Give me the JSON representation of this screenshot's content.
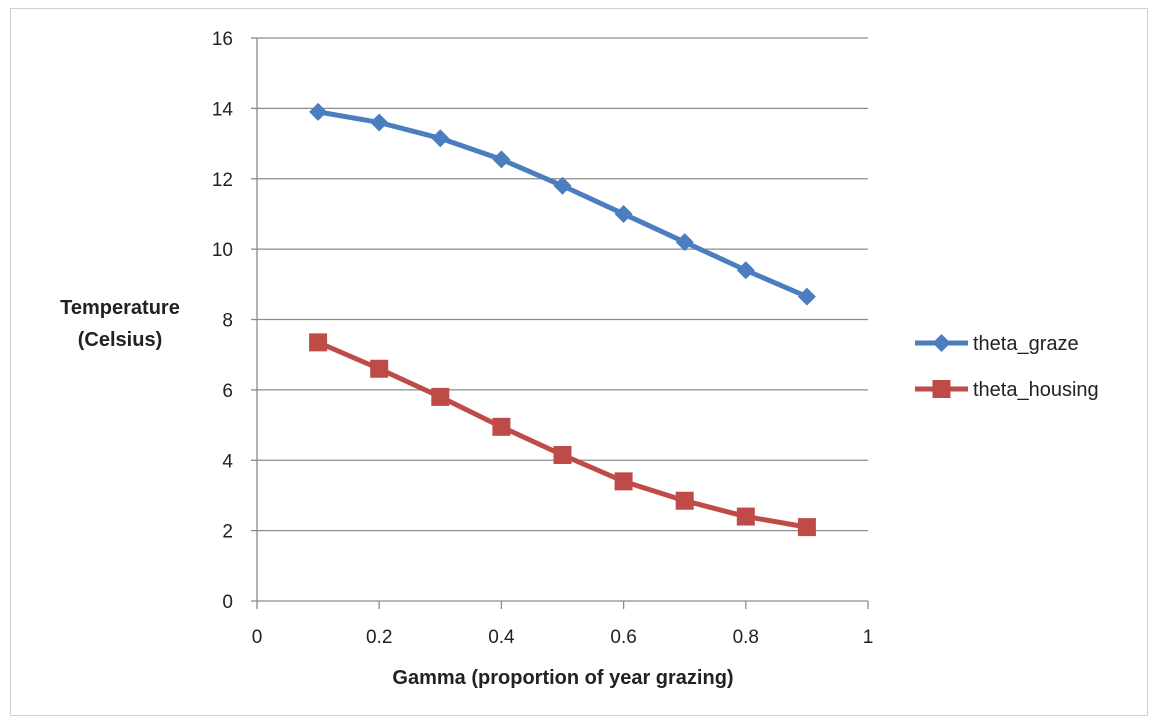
{
  "chart_data": {
    "type": "line",
    "xlabel": "Gamma (proportion of year grazing)",
    "ylabel": [
      "Temperature",
      "(Celsius)"
    ],
    "xlim": [
      0,
      1
    ],
    "ylim": [
      0,
      16
    ],
    "xticks": [
      0,
      0.2,
      0.4,
      0.6,
      0.8,
      1
    ],
    "xtick_labels": [
      "0",
      "0.2",
      "0.4",
      "0.6",
      "0.8",
      "1"
    ],
    "yticks": [
      0,
      2,
      4,
      6,
      8,
      10,
      12,
      14,
      16
    ],
    "ytick_labels": [
      "0",
      "2",
      "4",
      "6",
      "8",
      "10",
      "12",
      "14",
      "16"
    ],
    "grid": "horizontal",
    "legend_position": "right",
    "x": [
      0.1,
      0.2,
      0.3,
      0.4,
      0.5,
      0.6,
      0.7,
      0.8,
      0.9
    ],
    "series": [
      {
        "name": "theta_graze",
        "marker": "diamond",
        "color": "#4a7ebf",
        "values": [
          13.9,
          13.6,
          13.15,
          12.55,
          11.8,
          11.0,
          10.2,
          9.4,
          8.65
        ]
      },
      {
        "name": "theta_housing",
        "marker": "square",
        "color": "#be4b48",
        "values": [
          7.35,
          6.6,
          5.8,
          4.95,
          4.15,
          3.4,
          2.85,
          2.4,
          2.1
        ]
      }
    ]
  }
}
